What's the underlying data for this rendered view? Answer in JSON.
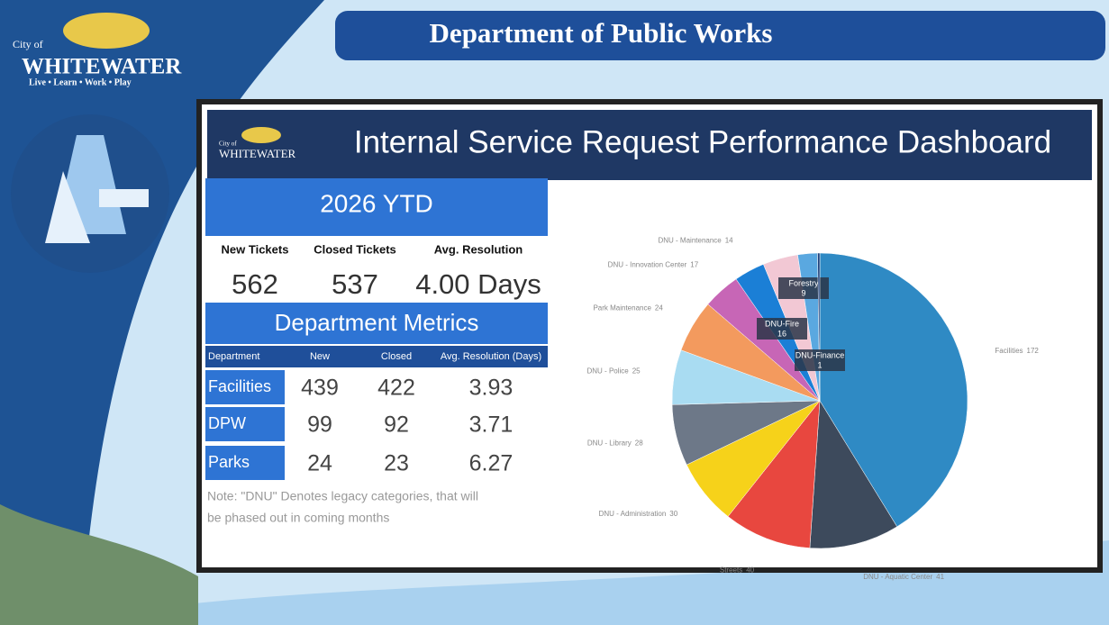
{
  "header": {
    "logo_city": "City of",
    "logo_name": "WHITEWATER",
    "logo_tagline": "Live • Learn • Work • Play",
    "title": "Department of Public Works"
  },
  "dashboard": {
    "logo_city": "City of",
    "logo_name": "WHITEWATER",
    "title": "Internal Service Request Performance Dashboard",
    "period": "2026 YTD",
    "kpis": [
      {
        "label": "New Tickets",
        "value": 562
      },
      {
        "label": "Closed Tickets",
        "value": 537
      },
      {
        "label": "Avg. Resolution",
        "value": "4.00 Days"
      }
    ],
    "metrics_title": "Department Metrics",
    "table": {
      "columns": [
        "Department",
        "New",
        "Closed",
        "Avg. Resolution (Days)"
      ],
      "rows": [
        [
          "Facilities",
          439,
          422,
          3.93
        ],
        [
          "DPW",
          99,
          92,
          3.71
        ],
        [
          "Parks",
          24,
          23,
          6.27
        ]
      ]
    },
    "note_lines": [
      "Note: \"DNU\" Denotes legacy categories, that will",
      "be phased out in coming months"
    ]
  },
  "chart_data": {
    "type": "pie",
    "categories": [
      "Facilities",
      "DNU - Aquatic Center",
      "Streets",
      "DNU - Administration",
      "DNU - Library",
      "DNU - Police",
      "Park Maintenance",
      "DNU - Innovation Center",
      "DNU - Maintenance",
      "DNU-Fire",
      "Forestry",
      "DNU-Finance"
    ],
    "values": [
      172,
      41,
      40,
      30,
      28,
      25,
      24,
      17,
      14,
      16,
      9,
      1
    ],
    "colors": [
      "#2f8ac4",
      "#3d4a5c",
      "#e8473f",
      "#f6d21a",
      "#6d7888",
      "#a9dcf2",
      "#f39a5e",
      "#c766b6",
      "#1b7fd6",
      "#f2c8d4",
      "#5aa8e0",
      "#1d3f7a"
    ]
  }
}
